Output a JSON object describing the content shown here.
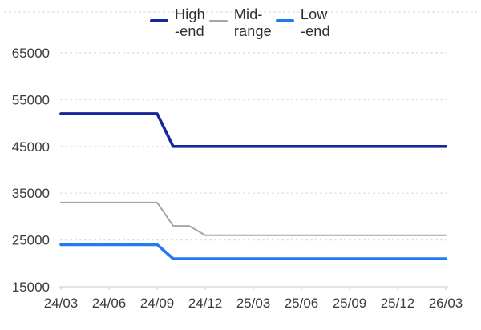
{
  "legend": {
    "items": [
      {
        "name": "High-end",
        "line1": "High",
        "line2": "-end",
        "color": "#16269d",
        "swatch_thickness": 4
      },
      {
        "name": "Mid-range",
        "line1": "Mid-",
        "line2": "range",
        "color": "#a6a6a3",
        "swatch_thickness": 2
      },
      {
        "name": "Low-end",
        "line1": "Low",
        "line2": "-end",
        "color": "#2379f0",
        "swatch_thickness": 4
      }
    ]
  },
  "chart_data": {
    "type": "line",
    "title": "",
    "xlabel": "",
    "ylabel": "",
    "x_tick_labels": [
      "24/03",
      "24/06",
      "24/09",
      "24/12",
      "25/03",
      "25/06",
      "25/09",
      "25/12",
      "26/03"
    ],
    "months_per_tick": 3,
    "y_ticks": [
      15000,
      25000,
      35000,
      45000,
      55000,
      65000
    ],
    "ylim": [
      15000,
      75000
    ],
    "grid": "horizontal dashed",
    "legend_position": "top-center",
    "series": [
      {
        "name": "High-end",
        "color": "#16269d",
        "stroke_width": 3.6,
        "points_month_value": [
          [
            0,
            52000
          ],
          [
            6,
            52000
          ],
          [
            7,
            45000
          ],
          [
            24,
            45000
          ]
        ]
      },
      {
        "name": "Mid-range",
        "color": "#a6a6a3",
        "stroke_width": 2,
        "points_month_value": [
          [
            0,
            33000
          ],
          [
            6,
            33000
          ],
          [
            7,
            28000
          ],
          [
            8,
            28000
          ],
          [
            9,
            26000
          ],
          [
            24,
            26000
          ]
        ]
      },
      {
        "name": "Low-end",
        "color": "#2379f0",
        "stroke_width": 3.6,
        "points_month_value": [
          [
            0,
            24000
          ],
          [
            6,
            24000
          ],
          [
            7,
            21000
          ],
          [
            24,
            21000
          ]
        ]
      }
    ]
  },
  "style": {
    "axis_text_color": "#3c3c3c",
    "gridline_color": "#e9e3d7",
    "axis_line_color": "#d8d4cc"
  }
}
